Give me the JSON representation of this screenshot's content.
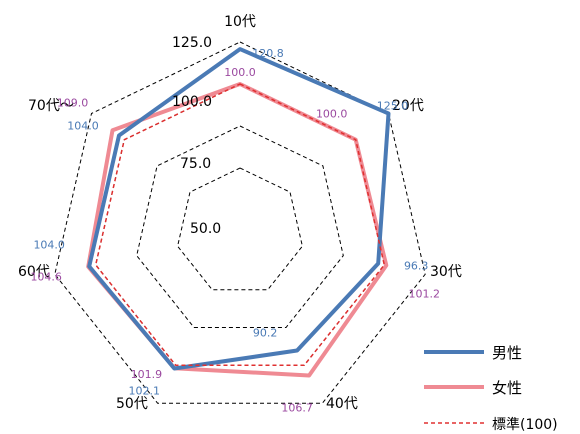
{
  "chart_data": {
    "type": "radar",
    "categories": [
      "10代",
      "20代",
      "30代",
      "40代",
      "50代",
      "60代",
      "70代～"
    ],
    "rlim": [
      50,
      125
    ],
    "ticks": [
      "50.0",
      "75.0",
      "100.0",
      "125.0"
    ],
    "grid": true,
    "legend_position": "bottom-right",
    "series": [
      {
        "name": "男性",
        "values": [
          120.8,
          125.0,
          96.3,
          90.2,
          102.1,
          104.0,
          104.0
        ],
        "labels": [
          "120.8",
          "125.0",
          "96.3",
          "90.2",
          "102.1",
          "104.0",
          "104.0"
        ],
        "color": "#4a7ab5",
        "style": "solid"
      },
      {
        "name": "女性",
        "values": [
          100.0,
          100.0,
          101.2,
          106.7,
          101.9,
          104.6,
          109.0
        ],
        "labels": [
          "100.0",
          "100.0",
          "101.2",
          "106.7",
          "101.9",
          "104.6",
          "109.0"
        ],
        "color": "#ef8a93",
        "style": "solid",
        "label_color": "#9b4aa0"
      },
      {
        "name": "標準(100)",
        "values": [
          100,
          100,
          100,
          100,
          100,
          100,
          100
        ],
        "color": "#e03030",
        "style": "dashed"
      }
    ]
  }
}
